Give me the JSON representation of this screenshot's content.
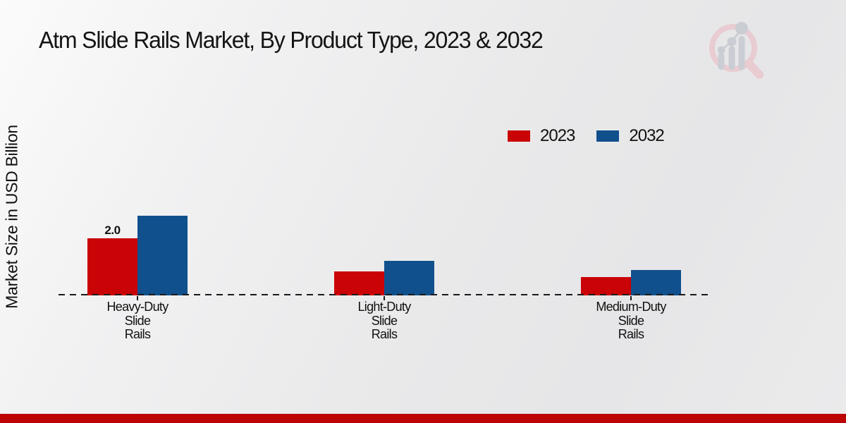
{
  "title": "Atm Slide Rails Market, By Product Type, 2023 & 2032",
  "y_axis_label": "Market Size in USD Billion",
  "legend": [
    {
      "label": "2023",
      "color": "#c90306"
    },
    {
      "label": "2032",
      "color": "#10508d"
    }
  ],
  "chart_data": {
    "type": "bar",
    "categories": [
      "Heavy-Duty Slide Rails",
      "Light-Duty Slide Rails",
      "Medium-Duty Slide Rails"
    ],
    "series": [
      {
        "name": "2023",
        "color": "#c90306",
        "values": [
          2.0,
          0.85,
          0.63
        ],
        "labels": [
          "2.0",
          "",
          ""
        ]
      },
      {
        "name": "2032",
        "color": "#10508d",
        "values": [
          2.8,
          1.2,
          0.9
        ],
        "labels": [
          "",
          "",
          ""
        ]
      }
    ],
    "title": "Atm Slide Rails Market, By Product Type, 2023 & 2032",
    "xlabel": "",
    "ylabel": "Market Size in USD Billion",
    "ylim": [
      0,
      3
    ],
    "grid": false,
    "baseline_style": "dashed",
    "legend_position": "upper-right"
  },
  "logo": {
    "name": "magnifier-bar-chart-logo",
    "ring_color": "#e9cbd1",
    "bars_color": "#c9ccd2"
  },
  "footer": {
    "banner_color": "#bc0404"
  }
}
